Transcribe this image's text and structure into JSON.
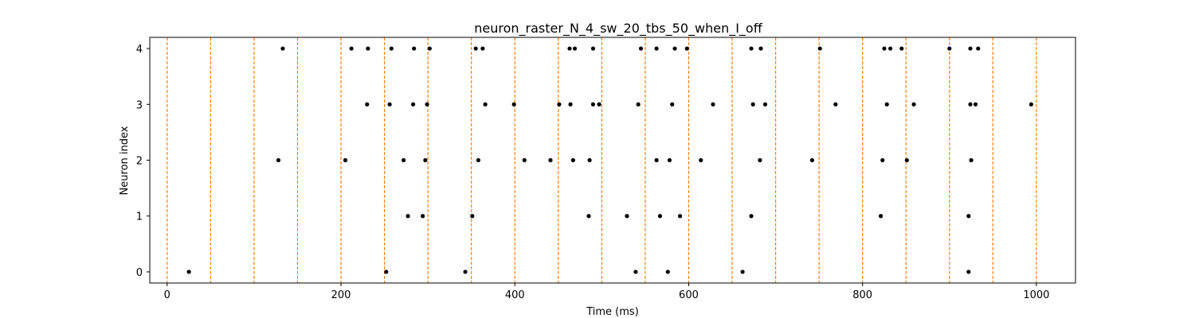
{
  "chart_data": {
    "type": "scatter",
    "title": "neuron_raster_N_4_sw_20_tbs_50_when_I_off",
    "xlabel": "Time (ms)",
    "ylabel": "Neuron index",
    "xlim": [
      -20,
      1045
    ],
    "ylim": [
      -0.2,
      4.2
    ],
    "xticks": [
      0,
      200,
      400,
      600,
      800,
      1000
    ],
    "yticks": [
      0,
      1,
      2,
      3,
      4
    ],
    "grid": false,
    "colors": {
      "spike": "#000000",
      "bin_line": "#ff7f0e",
      "axes": "#000000"
    },
    "bin_lines": [
      0,
      50,
      100,
      150,
      200,
      250,
      300,
      350,
      400,
      450,
      500,
      550,
      600,
      650,
      700,
      750,
      800,
      850,
      900,
      950,
      1000
    ],
    "series": [
      {
        "neuron": 0,
        "spike_times": [
          25,
          252,
          343,
          539,
          576,
          662,
          922
        ]
      },
      {
        "neuron": 1,
        "spike_times": [
          277,
          294,
          351,
          485,
          529,
          567,
          590,
          672,
          821,
          922
        ]
      },
      {
        "neuron": 2,
        "spike_times": [
          128,
          205,
          272,
          297,
          358,
          411,
          441,
          467,
          486,
          563,
          578,
          614,
          682,
          742,
          823,
          851,
          925
        ]
      },
      {
        "neuron": 3,
        "spike_times": [
          230,
          256,
          283,
          299,
          366,
          399,
          451,
          464,
          490,
          497,
          542,
          581,
          628,
          674,
          688,
          769,
          828,
          859,
          924,
          930,
          994
        ]
      },
      {
        "neuron": 4,
        "spike_times": [
          133,
          212,
          231,
          258,
          284,
          302,
          355,
          363,
          463,
          469,
          490,
          545,
          563,
          584,
          598,
          672,
          683,
          751,
          825,
          832,
          845,
          900,
          924,
          933
        ]
      }
    ]
  }
}
